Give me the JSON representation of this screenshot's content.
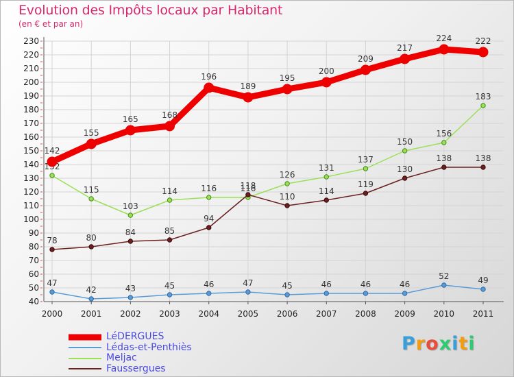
{
  "chart_data": {
    "type": "line",
    "title": "Evolution des Impôts locaux par Habitant",
    "subtitle": "(en € et par an)",
    "xlabel": "",
    "ylabel": "",
    "x": [
      "2000",
      "2001",
      "2002",
      "2003",
      "2004",
      "2005",
      "2006",
      "2007",
      "2008",
      "2009",
      "2010",
      "2011"
    ],
    "ylim": [
      40,
      230
    ],
    "yticks": [
      40,
      50,
      60,
      70,
      80,
      90,
      100,
      110,
      120,
      130,
      140,
      150,
      160,
      170,
      180,
      190,
      200,
      210,
      220,
      230
    ],
    "grid": true,
    "legend_position": "bottom-left",
    "series": [
      {
        "name": "LéDERGUES",
        "color": "#ee0000",
        "values": [
          142,
          155,
          165,
          168,
          196,
          189,
          195,
          200,
          209,
          217,
          224,
          222
        ]
      },
      {
        "name": "Lédas-et-Penthiès",
        "color": "#5b9bd5",
        "values": [
          47,
          42,
          43,
          45,
          46,
          47,
          45,
          46,
          46,
          46,
          52,
          49
        ]
      },
      {
        "name": "Meljac",
        "color": "#99e055",
        "values": [
          132,
          115,
          103,
          114,
          116,
          116,
          126,
          131,
          137,
          150,
          156,
          183
        ]
      },
      {
        "name": "Faussergues",
        "color": "#6b1f1f",
        "values": [
          78,
          80,
          84,
          85,
          94,
          118,
          110,
          114,
          119,
          130,
          138,
          138
        ]
      }
    ]
  },
  "logo": {
    "letters": [
      "P",
      "r",
      "o",
      "x",
      "i",
      "t",
      "i"
    ],
    "colors": [
      "#3a9fd8",
      "#f39c12",
      "#e74c3c",
      "#2ecc71",
      "#3a9fd8",
      "#f39c12",
      "#2ecc71"
    ]
  }
}
